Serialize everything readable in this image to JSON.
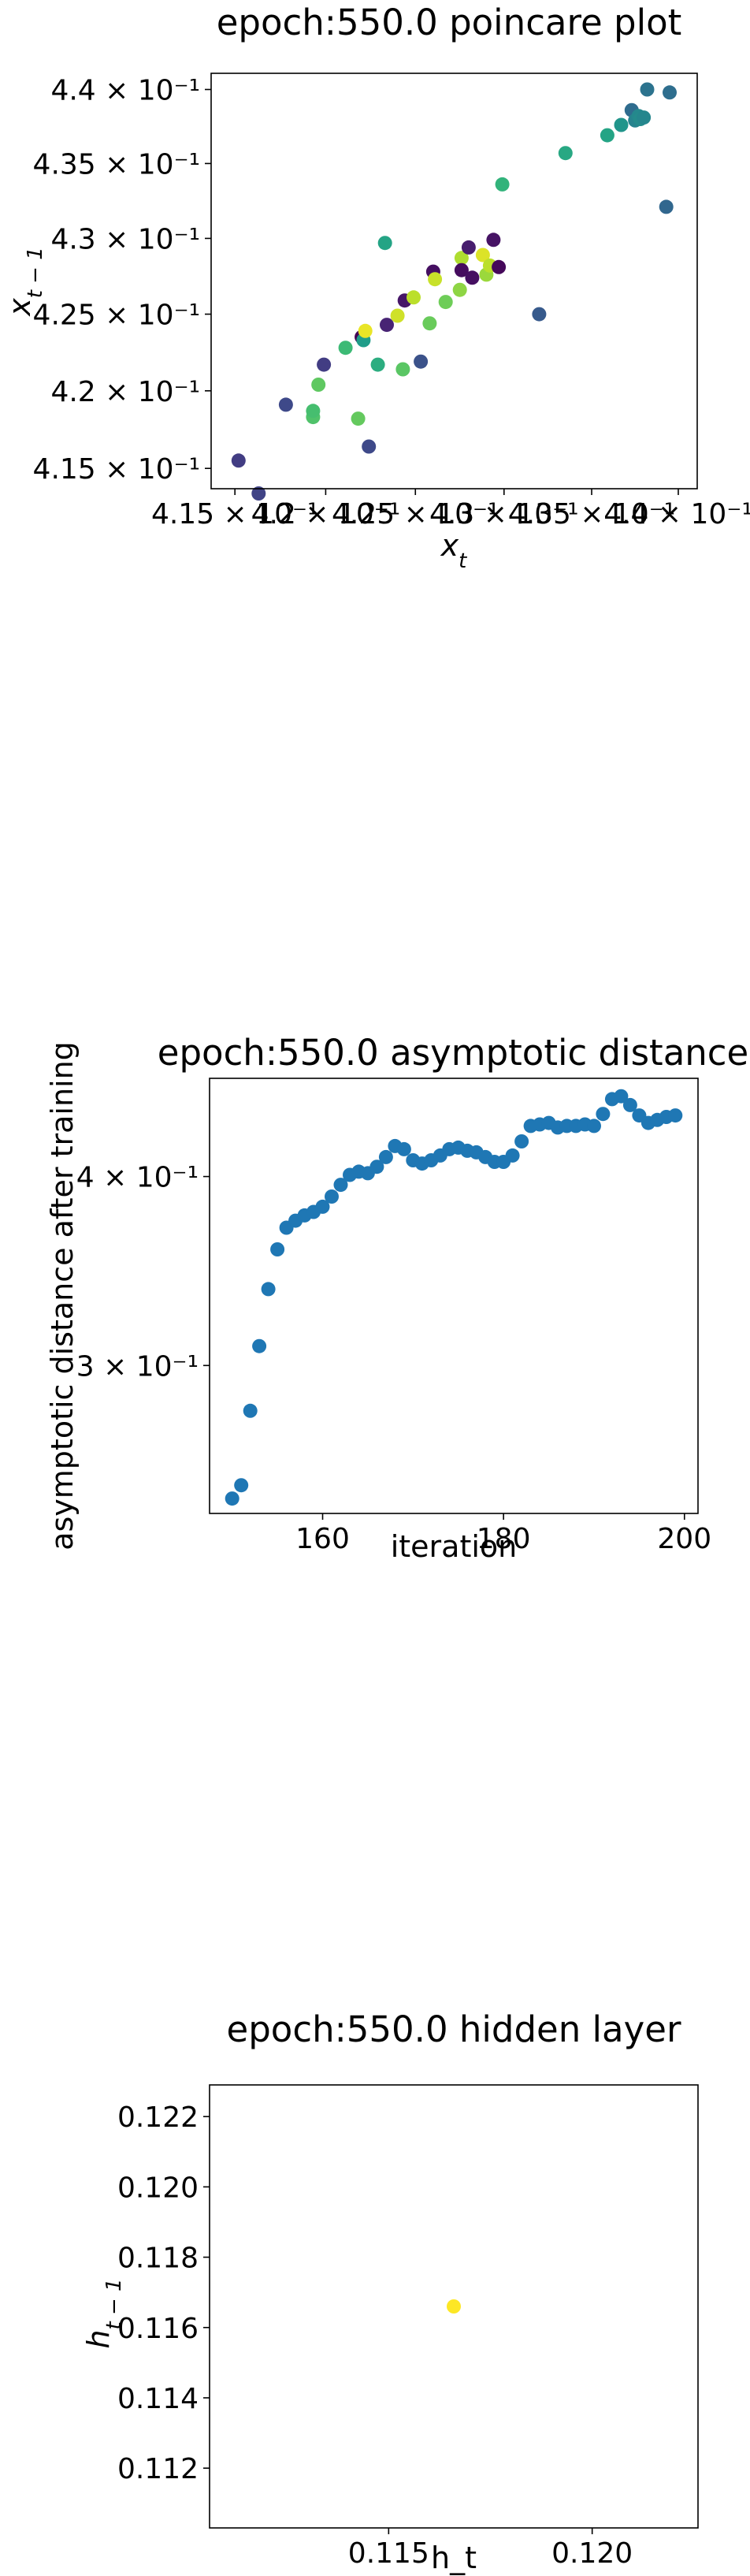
{
  "chart_data": [
    {
      "type": "scatter",
      "title": "epoch:550.0 poincare plot",
      "xlabel": "x_t",
      "ylabel": "x_{t-1}",
      "xscale": "log",
      "yscale": "log",
      "xlim": [
        0.4137,
        0.4411
      ],
      "ylim": [
        0.4137,
        0.4411
      ],
      "xticks": [
        {
          "value": 0.415,
          "label": "4.15 × 10⁻¹"
        },
        {
          "value": 0.42,
          "label": "4.2 × 10⁻¹"
        },
        {
          "value": 0.425,
          "label": "4.25 × 10⁻¹"
        },
        {
          "value": 0.43,
          "label": "4.3 × 10⁻¹"
        },
        {
          "value": 0.435,
          "label": "4.35 × 10⁻¹"
        },
        {
          "value": 0.44,
          "label": "4.4 × 10⁻¹"
        }
      ],
      "yticks": [
        {
          "value": 0.415,
          "label": "4.15 × 10⁻¹"
        },
        {
          "value": 0.42,
          "label": "4.2 × 10⁻¹"
        },
        {
          "value": 0.425,
          "label": "4.25 × 10⁻¹"
        },
        {
          "value": 0.43,
          "label": "4.3 × 10⁻¹"
        },
        {
          "value": 0.435,
          "label": "4.35 × 10⁻¹"
        },
        {
          "value": 0.44,
          "label": "4.4 × 10⁻¹"
        }
      ],
      "grid": false,
      "colormap": "viridis",
      "points": [
        {
          "x": 0.4152,
          "y": 0.4155,
          "c": 0.18
        },
        {
          "x": 0.4163,
          "y": 0.4134,
          "c": 0.2
        },
        {
          "x": 0.4178,
          "y": 0.4191,
          "c": 0.22
        },
        {
          "x": 0.4193,
          "y": 0.4183,
          "c": 0.72
        },
        {
          "x": 0.4193,
          "y": 0.4187,
          "c": 0.7
        },
        {
          "x": 0.4196,
          "y": 0.4204,
          "c": 0.75
        },
        {
          "x": 0.4199,
          "y": 0.4217,
          "c": 0.18
        },
        {
          "x": 0.4211,
          "y": 0.4228,
          "c": 0.68
        },
        {
          "x": 0.4218,
          "y": 0.4182,
          "c": 0.76
        },
        {
          "x": 0.422,
          "y": 0.4235,
          "c": 0.0
        },
        {
          "x": 0.4221,
          "y": 0.4233,
          "c": 0.55
        },
        {
          "x": 0.4224,
          "y": 0.4164,
          "c": 0.22
        },
        {
          "x": 0.4222,
          "y": 0.4239,
          "c": 0.97
        },
        {
          "x": 0.4229,
          "y": 0.4217,
          "c": 0.62
        },
        {
          "x": 0.4233,
          "y": 0.4297,
          "c": 0.58
        },
        {
          "x": 0.4234,
          "y": 0.4243,
          "c": 0.1
        },
        {
          "x": 0.424,
          "y": 0.4249,
          "c": 0.93
        },
        {
          "x": 0.4243,
          "y": 0.4214,
          "c": 0.74
        },
        {
          "x": 0.4244,
          "y": 0.4259,
          "c": 0.06
        },
        {
          "x": 0.4249,
          "y": 0.4261,
          "c": 0.9
        },
        {
          "x": 0.4253,
          "y": 0.4219,
          "c": 0.25
        },
        {
          "x": 0.4258,
          "y": 0.4244,
          "c": 0.77
        },
        {
          "x": 0.426,
          "y": 0.4278,
          "c": 0.04
        },
        {
          "x": 0.4261,
          "y": 0.4273,
          "c": 0.92
        },
        {
          "x": 0.4267,
          "y": 0.4258,
          "c": 0.78
        },
        {
          "x": 0.4275,
          "y": 0.4266,
          "c": 0.83
        },
        {
          "x": 0.4276,
          "y": 0.4287,
          "c": 0.88
        },
        {
          "x": 0.4276,
          "y": 0.4279,
          "c": 0.03
        },
        {
          "x": 0.428,
          "y": 0.4294,
          "c": 0.08
        },
        {
          "x": 0.4282,
          "y": 0.4274,
          "c": 0.04
        },
        {
          "x": 0.4288,
          "y": 0.4289,
          "c": 0.95
        },
        {
          "x": 0.429,
          "y": 0.4276,
          "c": 0.85
        },
        {
          "x": 0.4292,
          "y": 0.4282,
          "c": 0.9
        },
        {
          "x": 0.4294,
          "y": 0.4299,
          "c": 0.05
        },
        {
          "x": 0.4297,
          "y": 0.4281,
          "c": 0.02
        },
        {
          "x": 0.4299,
          "y": 0.4336,
          "c": 0.65
        },
        {
          "x": 0.432,
          "y": 0.425,
          "c": 0.28
        },
        {
          "x": 0.4335,
          "y": 0.4357,
          "c": 0.6
        },
        {
          "x": 0.4359,
          "y": 0.4369,
          "c": 0.58
        },
        {
          "x": 0.4367,
          "y": 0.4376,
          "c": 0.52
        },
        {
          "x": 0.4373,
          "y": 0.4386,
          "c": 0.35
        },
        {
          "x": 0.4375,
          "y": 0.4379,
          "c": 0.45
        },
        {
          "x": 0.4377,
          "y": 0.4382,
          "c": 0.47
        },
        {
          "x": 0.4378,
          "y": 0.438,
          "c": 0.48
        },
        {
          "x": 0.438,
          "y": 0.4381,
          "c": 0.46
        },
        {
          "x": 0.4382,
          "y": 0.44,
          "c": 0.38
        },
        {
          "x": 0.4393,
          "y": 0.4321,
          "c": 0.33
        },
        {
          "x": 0.4395,
          "y": 0.4398,
          "c": 0.36
        }
      ]
    },
    {
      "type": "scatter",
      "title": "epoch:550.0 asymptotic distance",
      "xlabel": "iteration",
      "ylabel": "asymptotic distance after training",
      "yscale": "log",
      "xlim": [
        147.5,
        201.5
      ],
      "ylim": [
        0.2395,
        0.4645
      ],
      "xticks": [
        {
          "value": 160,
          "label": "160"
        },
        {
          "value": 180,
          "label": "180"
        },
        {
          "value": 200,
          "label": "200"
        }
      ],
      "yticks": [
        {
          "value": 0.3,
          "label": "3 × 10⁻¹"
        },
        {
          "value": 0.4,
          "label": "4 × 10⁻¹"
        }
      ],
      "grid": false,
      "color": "#1f77b4",
      "x": [
        150,
        151,
        152,
        153,
        154,
        155,
        156,
        157,
        158,
        159,
        160,
        161,
        162,
        163,
        164,
        165,
        166,
        167,
        168,
        169,
        170,
        171,
        172,
        173,
        174,
        175,
        176,
        177,
        178,
        179,
        180,
        181,
        182,
        183,
        184,
        185,
        186,
        187,
        188,
        189,
        190,
        191,
        192,
        193,
        194,
        195,
        196,
        197,
        198,
        199
      ],
      "y": [
        0.245,
        0.25,
        0.28,
        0.309,
        0.337,
        0.358,
        0.37,
        0.374,
        0.377,
        0.379,
        0.382,
        0.388,
        0.395,
        0.401,
        0.403,
        0.402,
        0.406,
        0.412,
        0.419,
        0.417,
        0.41,
        0.408,
        0.41,
        0.413,
        0.417,
        0.418,
        0.416,
        0.415,
        0.412,
        0.409,
        0.409,
        0.413,
        0.422,
        0.432,
        0.433,
        0.434,
        0.431,
        0.432,
        0.432,
        0.433,
        0.432,
        0.44,
        0.45,
        0.452,
        0.446,
        0.439,
        0.434,
        0.436,
        0.438,
        0.439
      ]
    },
    {
      "type": "scatter",
      "title": "epoch:550.0 hidden layer",
      "xlabel": "h_t",
      "ylabel": "h_{t-1}",
      "xlim": [
        0.1106,
        0.1226
      ],
      "ylim": [
        0.1103,
        0.1229
      ],
      "xticks": [
        {
          "value": 0.115,
          "label": "0.115"
        },
        {
          "value": 0.12,
          "label": "0.120"
        }
      ],
      "yticks": [
        {
          "value": 0.112,
          "label": "0.112"
        },
        {
          "value": 0.114,
          "label": "0.114"
        },
        {
          "value": 0.116,
          "label": "0.116"
        },
        {
          "value": 0.118,
          "label": "0.118"
        },
        {
          "value": 0.12,
          "label": "0.120"
        },
        {
          "value": 0.122,
          "label": "0.122"
        }
      ],
      "grid": false,
      "color": "#fde725",
      "points": [
        {
          "x": 0.1166,
          "y": 0.1166
        }
      ]
    }
  ]
}
